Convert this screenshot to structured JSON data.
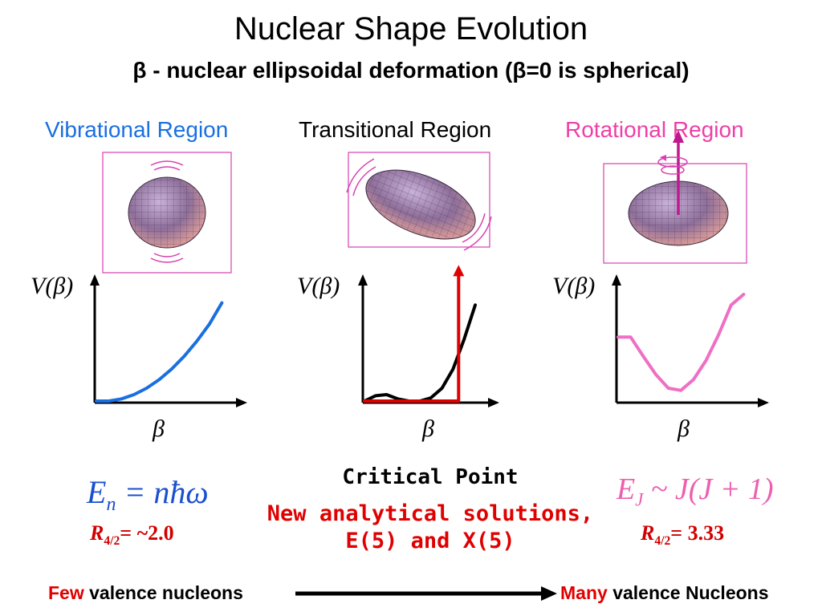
{
  "title": "Nuclear Shape Evolution",
  "subtitle": "β - nuclear ellipsoidal deformation (β=0 is spherical)",
  "regions": [
    {
      "label": "Vibrational Region",
      "color": "#1a6fe0"
    },
    {
      "label": "Transitional Region",
      "color": "#000000"
    },
    {
      "label": "Rotational Region",
      "color": "#ee3fa6"
    }
  ],
  "axis": {
    "ylabel": "V(β)",
    "xlabel": "β"
  },
  "critical_point": "Critical Point",
  "new_solutions_line1": "New analytical solutions,",
  "new_solutions_line2": "E(5) and X(5)",
  "eq_left": {
    "E": "E",
    "sub": "n",
    "rhs": "= nħω"
  },
  "eq_right": {
    "E": "E",
    "sub": "J",
    "rhs": "~ J(J + 1)"
  },
  "ratio_left": {
    "R": "R",
    "sub": "4/2",
    "value": "= ~2.0"
  },
  "ratio_right": {
    "R": "R",
    "sub": "4/2",
    "value": "= 3.33"
  },
  "bottom_left": {
    "few": "Few",
    "text": "valence nucleons"
  },
  "bottom_right": {
    "many": "Many",
    "text": "valence Nucleons"
  },
  "colors": {
    "magenta": "#d83fb0",
    "blue": "#1a6fe0",
    "red": "#e00000",
    "pink": "#ee6fc4"
  },
  "chart_data": [
    {
      "type": "line",
      "title": "Vibrational Region",
      "ylabel": "V(β)",
      "xlabel": "β",
      "series": [
        {
          "x": [
            0,
            0.1,
            0.2,
            0.3,
            0.4,
            0.5,
            0.6,
            0.7,
            0.8,
            0.9,
            1.0
          ],
          "y": [
            0,
            0.0,
            0.02,
            0.06,
            0.12,
            0.2,
            0.3,
            0.42,
            0.56,
            0.72,
            0.92
          ]
        }
      ]
    },
    {
      "type": "line",
      "title": "Transitional Region",
      "ylabel": "V(β)",
      "xlabel": "β",
      "series": [
        {
          "x": [
            0,
            0.1,
            0.2,
            0.3,
            0.4,
            0.5,
            0.6,
            0.7,
            0.8,
            0.9,
            1.0
          ],
          "y": [
            0,
            0.05,
            0.06,
            0.02,
            0.0,
            0.0,
            0.03,
            0.12,
            0.3,
            0.58,
            0.9
          ]
        },
        {
          "x": [
            0,
            0.85,
            0.85
          ],
          "y": [
            0,
            0,
            1.2
          ]
        }
      ]
    },
    {
      "type": "line",
      "title": "Rotational Region",
      "ylabel": "V(β)",
      "xlabel": "β",
      "series": [
        {
          "x": [
            0,
            0.1,
            0.2,
            0.3,
            0.4,
            0.5,
            0.6,
            0.7,
            0.8,
            0.9,
            1.0
          ],
          "y": [
            0.6,
            0.6,
            0.42,
            0.25,
            0.12,
            0.1,
            0.2,
            0.38,
            0.62,
            0.9,
            1.0
          ]
        }
      ]
    }
  ]
}
